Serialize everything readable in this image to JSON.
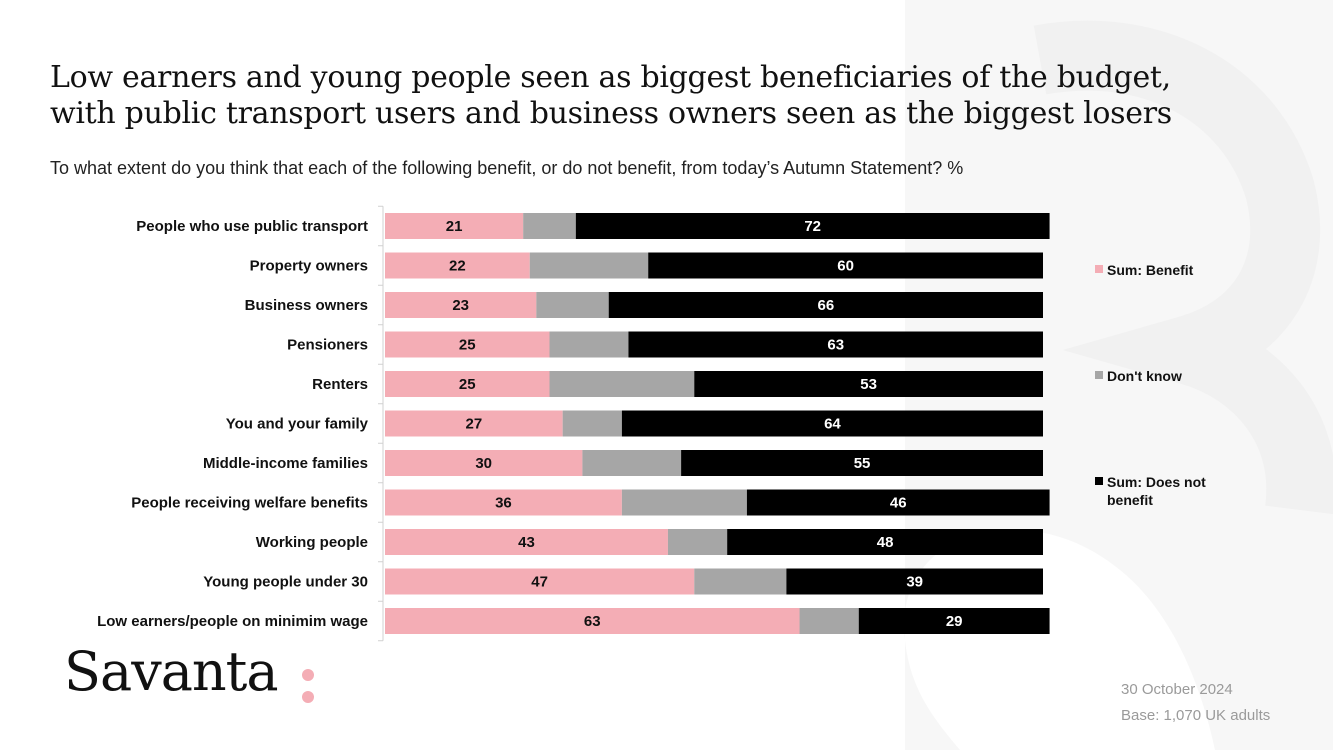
{
  "title_line1": "Low earners and young people seen as biggest beneficiaries of the budget,",
  "title_line2": "with public transport users and business owners seen as the biggest losers",
  "subtitle": "To what extent do you think that each of the following benefit, or do not benefit, from today’s Autumn Statement? %",
  "brand": "Savanta",
  "footer": {
    "date": "30 October 2024",
    "base": "Base: 1,070 UK adults"
  },
  "colors": {
    "benefit": "#f4adb5",
    "dont_know": "#a6a6a6",
    "not_benefit": "#000000",
    "brand_dots": "#f4adb5"
  },
  "chart_data": {
    "type": "bar",
    "orientation": "horizontal",
    "stacked": true,
    "xlim": [
      0,
      100
    ],
    "categories": [
      "People who use public transport",
      "Property owners",
      "Business owners",
      "Pensioners",
      "Renters",
      "You and your family",
      "Middle-income families",
      "People receiving welfare benefits",
      "Working people",
      "Young people under 30",
      "Low earners/people on minimim wage"
    ],
    "series": [
      {
        "name": "Sum: Benefit",
        "color": "#f4adb5",
        "values": [
          21,
          22,
          23,
          25,
          25,
          27,
          30,
          36,
          43,
          47,
          63
        ],
        "labeled": true
      },
      {
        "name": "Don't know",
        "color": "#a6a6a6",
        "values": [
          8,
          18,
          11,
          12,
          22,
          9,
          15,
          19,
          9,
          14,
          9
        ],
        "labeled": false
      },
      {
        "name": "Sum: Does not benefit",
        "color": "#000000",
        "values": [
          72,
          60,
          66,
          63,
          53,
          64,
          55,
          46,
          48,
          39,
          29
        ],
        "labeled": true
      }
    ],
    "legend_position": "right",
    "grid": false
  }
}
